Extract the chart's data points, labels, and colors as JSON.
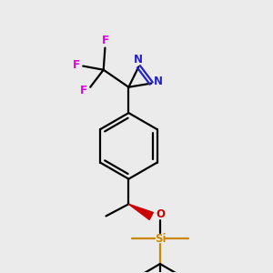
{
  "background_color": "#ebebeb",
  "figsize": [
    3.0,
    3.0
  ],
  "dpi": 100,
  "bond_color": "#000000",
  "bond_lw": 1.6,
  "diazirine_color": "#2222cc",
  "F_color": "#dd00dd",
  "O_color": "#cc0000",
  "Si_color": "#cc8800",
  "wedge_color": "#cc0000",
  "xlim": [
    3.0,
    8.5
  ],
  "ylim": [
    1.2,
    9.8
  ]
}
